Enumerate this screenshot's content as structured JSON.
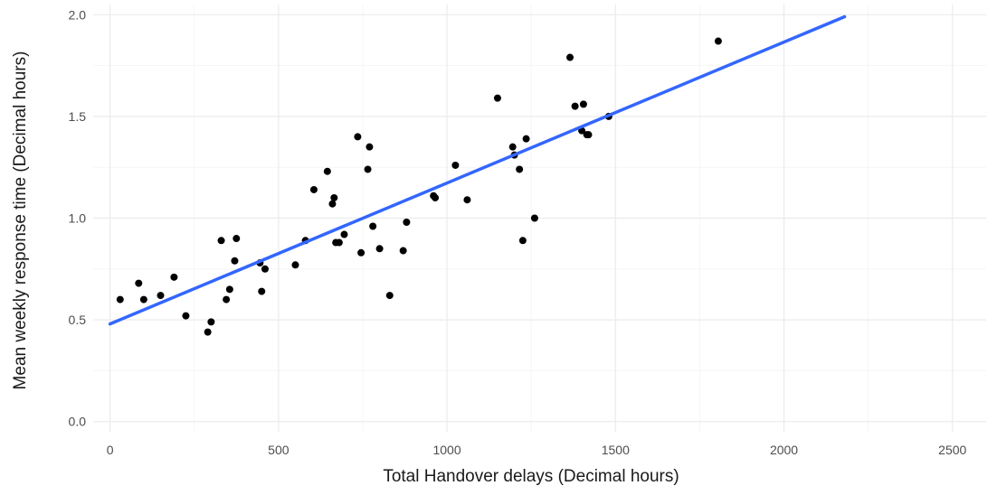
{
  "chart_data": {
    "type": "scatter",
    "xlabel": "Total Handover delays (Decimal hours)",
    "ylabel": "Mean weekly response time (Decimal hours)",
    "xlim": [
      -50,
      2600
    ],
    "ylim": [
      -0.05,
      2.05
    ],
    "x_ticks": [
      0,
      500,
      1000,
      1500,
      2000,
      2500
    ],
    "y_ticks": [
      0.0,
      0.5,
      1.0,
      1.5,
      2.0
    ],
    "x_tick_labels": [
      "0",
      "500",
      "1000",
      "1500",
      "2000",
      "2500"
    ],
    "y_tick_labels": [
      "0.0",
      "0.5",
      "1.0",
      "1.5",
      "2.0"
    ],
    "grid": true,
    "point_color": "#000000",
    "line_color": "#3366ff",
    "points": [
      [
        30,
        0.6
      ],
      [
        85,
        0.68
      ],
      [
        100,
        0.6
      ],
      [
        150,
        0.62
      ],
      [
        190,
        0.71
      ],
      [
        225,
        0.52
      ],
      [
        290,
        0.44
      ],
      [
        300,
        0.49
      ],
      [
        330,
        0.89
      ],
      [
        345,
        0.6
      ],
      [
        355,
        0.65
      ],
      [
        370,
        0.79
      ],
      [
        375,
        0.9
      ],
      [
        445,
        0.78
      ],
      [
        450,
        0.64
      ],
      [
        460,
        0.75
      ],
      [
        550,
        0.77
      ],
      [
        580,
        0.89
      ],
      [
        605,
        1.14
      ],
      [
        645,
        1.23
      ],
      [
        660,
        1.07
      ],
      [
        665,
        1.1
      ],
      [
        670,
        0.88
      ],
      [
        680,
        0.88
      ],
      [
        695,
        0.92
      ],
      [
        735,
        1.4
      ],
      [
        745,
        0.83
      ],
      [
        765,
        1.24
      ],
      [
        770,
        1.35
      ],
      [
        780,
        0.96
      ],
      [
        800,
        0.85
      ],
      [
        830,
        0.62
      ],
      [
        870,
        0.84
      ],
      [
        880,
        0.98
      ],
      [
        960,
        1.11
      ],
      [
        965,
        1.1
      ],
      [
        1025,
        1.26
      ],
      [
        1060,
        1.09
      ],
      [
        1150,
        1.59
      ],
      [
        1195,
        1.35
      ],
      [
        1200,
        1.31
      ],
      [
        1215,
        1.24
      ],
      [
        1225,
        0.89
      ],
      [
        1235,
        1.39
      ],
      [
        1260,
        1.0
      ],
      [
        1365,
        1.79
      ],
      [
        1380,
        1.55
      ],
      [
        1400,
        1.43
      ],
      [
        1405,
        1.56
      ],
      [
        1415,
        1.41
      ],
      [
        1420,
        1.41
      ],
      [
        1480,
        1.5
      ],
      [
        1805,
        1.87
      ]
    ],
    "fit_line": {
      "x": [
        0,
        2180
      ],
      "y": [
        0.48,
        1.99
      ]
    }
  }
}
